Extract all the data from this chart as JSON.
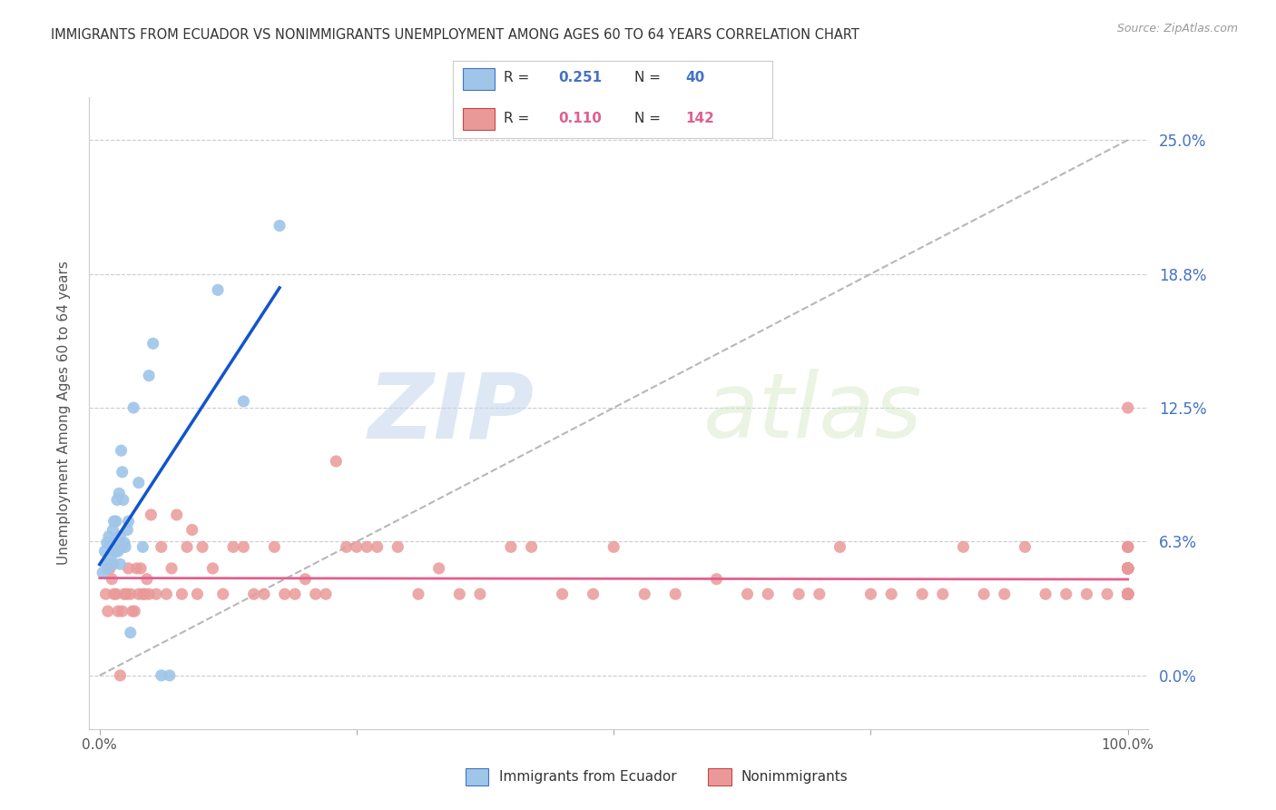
{
  "title": "IMMIGRANTS FROM ECUADOR VS NONIMMIGRANTS UNEMPLOYMENT AMONG AGES 60 TO 64 YEARS CORRELATION CHART",
  "source": "Source: ZipAtlas.com",
  "ylabel": "Unemployment Among Ages 60 to 64 years",
  "legend_blue_label": "Immigrants from Ecuador",
  "legend_pink_label": "Nonimmigrants",
  "R_blue": "0.251",
  "N_blue": "40",
  "R_pink": "0.110",
  "N_pink": "142",
  "blue_color": "#9fc5e8",
  "pink_color": "#ea9999",
  "regression_blue_color": "#1155cc",
  "regression_pink_color": "#e06090",
  "diagonal_color": "#b0b0b0",
  "background_color": "#ffffff",
  "watermark_zip": "ZIP",
  "watermark_atlas": "atlas",
  "xmin": -0.01,
  "xmax": 1.02,
  "ymin": -0.025,
  "ymax": 0.27,
  "yticks": [
    0.0,
    0.0625,
    0.125,
    0.1875,
    0.25
  ],
  "ytick_labels": [
    "0.0%",
    "6.3%",
    "12.5%",
    "18.8%",
    "25.0%"
  ],
  "xticks": [
    0.0,
    0.25,
    0.5,
    0.75,
    1.0
  ],
  "xtick_labels": [
    "0.0%",
    "",
    "",
    "",
    "100.0%"
  ],
  "blue_x": [
    0.003,
    0.005,
    0.006,
    0.007,
    0.008,
    0.009,
    0.009,
    0.01,
    0.011,
    0.012,
    0.013,
    0.013,
    0.014,
    0.015,
    0.016,
    0.016,
    0.017,
    0.018,
    0.019,
    0.02,
    0.02,
    0.021,
    0.022,
    0.022,
    0.023,
    0.024,
    0.025,
    0.027,
    0.028,
    0.03,
    0.033,
    0.038,
    0.042,
    0.048,
    0.052,
    0.06,
    0.068,
    0.115,
    0.14,
    0.175
  ],
  "blue_y": [
    0.048,
    0.058,
    0.052,
    0.062,
    0.05,
    0.052,
    0.065,
    0.062,
    0.055,
    0.062,
    0.052,
    0.068,
    0.072,
    0.058,
    0.072,
    0.058,
    0.082,
    0.058,
    0.085,
    0.052,
    0.065,
    0.105,
    0.095,
    0.06,
    0.082,
    0.062,
    0.06,
    0.068,
    0.072,
    0.02,
    0.125,
    0.09,
    0.06,
    0.14,
    0.155,
    0.0,
    0.0,
    0.18,
    0.128,
    0.21
  ],
  "pink_x": [
    0.006,
    0.008,
    0.01,
    0.012,
    0.014,
    0.016,
    0.018,
    0.02,
    0.022,
    0.024,
    0.026,
    0.028,
    0.03,
    0.032,
    0.034,
    0.036,
    0.038,
    0.04,
    0.042,
    0.044,
    0.046,
    0.048,
    0.05,
    0.055,
    0.06,
    0.065,
    0.07,
    0.075,
    0.08,
    0.085,
    0.09,
    0.095,
    0.1,
    0.11,
    0.12,
    0.13,
    0.14,
    0.15,
    0.16,
    0.17,
    0.18,
    0.19,
    0.2,
    0.21,
    0.22,
    0.23,
    0.24,
    0.25,
    0.26,
    0.27,
    0.29,
    0.31,
    0.33,
    0.35,
    0.37,
    0.4,
    0.42,
    0.45,
    0.48,
    0.5,
    0.53,
    0.56,
    0.6,
    0.63,
    0.65,
    0.68,
    0.7,
    0.72,
    0.75,
    0.77,
    0.8,
    0.82,
    0.84,
    0.86,
    0.88,
    0.9,
    0.92,
    0.94,
    0.96,
    0.98,
    1.0,
    1.0,
    1.0,
    1.0,
    1.0,
    1.0,
    1.0,
    1.0,
    1.0,
    1.0,
    1.0,
    1.0,
    1.0,
    1.0,
    1.0,
    1.0,
    1.0,
    1.0,
    1.0,
    1.0,
    1.0,
    1.0,
    1.0,
    1.0,
    1.0,
    1.0,
    1.0,
    1.0,
    1.0,
    1.0,
    1.0,
    1.0,
    1.0,
    1.0,
    1.0,
    1.0,
    1.0,
    1.0,
    1.0,
    1.0,
    1.0,
    1.0,
    1.0,
    1.0,
    1.0,
    1.0,
    1.0,
    1.0,
    1.0,
    1.0,
    1.0,
    1.0,
    1.0,
    1.0,
    1.0,
    1.0,
    1.0,
    1.0,
    1.0
  ],
  "pink_y": [
    0.038,
    0.03,
    0.05,
    0.045,
    0.038,
    0.038,
    0.03,
    0.0,
    0.03,
    0.038,
    0.038,
    0.05,
    0.038,
    0.03,
    0.03,
    0.05,
    0.038,
    0.05,
    0.038,
    0.038,
    0.045,
    0.038,
    0.075,
    0.038,
    0.06,
    0.038,
    0.05,
    0.075,
    0.038,
    0.06,
    0.068,
    0.038,
    0.06,
    0.05,
    0.038,
    0.06,
    0.06,
    0.038,
    0.038,
    0.06,
    0.038,
    0.038,
    0.045,
    0.038,
    0.038,
    0.1,
    0.06,
    0.06,
    0.06,
    0.06,
    0.06,
    0.038,
    0.05,
    0.038,
    0.038,
    0.06,
    0.06,
    0.038,
    0.038,
    0.06,
    0.038,
    0.038,
    0.045,
    0.038,
    0.038,
    0.038,
    0.038,
    0.06,
    0.038,
    0.038,
    0.038,
    0.038,
    0.06,
    0.038,
    0.038,
    0.06,
    0.038,
    0.038,
    0.038,
    0.038,
    0.06,
    0.038,
    0.038,
    0.038,
    0.038,
    0.06,
    0.038,
    0.038,
    0.06,
    0.05,
    0.038,
    0.05,
    0.038,
    0.05,
    0.038,
    0.05,
    0.038,
    0.05,
    0.038,
    0.05,
    0.038,
    0.05,
    0.038,
    0.05,
    0.038,
    0.038,
    0.038,
    0.038,
    0.05,
    0.038,
    0.05,
    0.038,
    0.05,
    0.038,
    0.05,
    0.038,
    0.038,
    0.05,
    0.038,
    0.05,
    0.038,
    0.038,
    0.05,
    0.038,
    0.05,
    0.038,
    0.05,
    0.038,
    0.05,
    0.038,
    0.038,
    0.05,
    0.038,
    0.05,
    0.038,
    0.05,
    0.038,
    0.05,
    0.125
  ]
}
